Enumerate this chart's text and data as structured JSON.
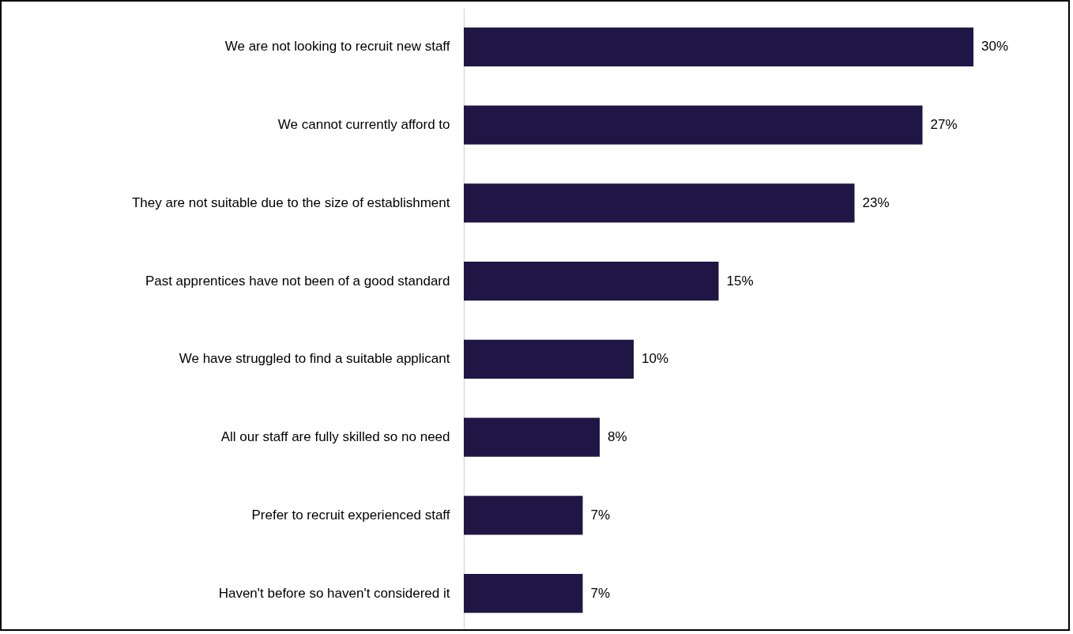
{
  "chart_data": {
    "type": "bar",
    "orientation": "horizontal",
    "categories": [
      "We are not looking to recruit new staff",
      "We cannot currently afford to",
      "They are not suitable due to the size of establishment",
      "Past apprentices have not been of a good standard",
      "We have struggled to find a suitable applicant",
      "All our staff are fully skilled so no need",
      "Prefer to recruit experienced staff",
      "Haven't before so haven't considered it"
    ],
    "values": [
      30,
      27,
      23,
      15,
      10,
      8,
      7,
      7
    ],
    "value_labels": [
      "30%",
      "27%",
      "23%",
      "15%",
      "10%",
      "8%",
      "7%",
      "7%"
    ],
    "color": "#1f1646"
  }
}
